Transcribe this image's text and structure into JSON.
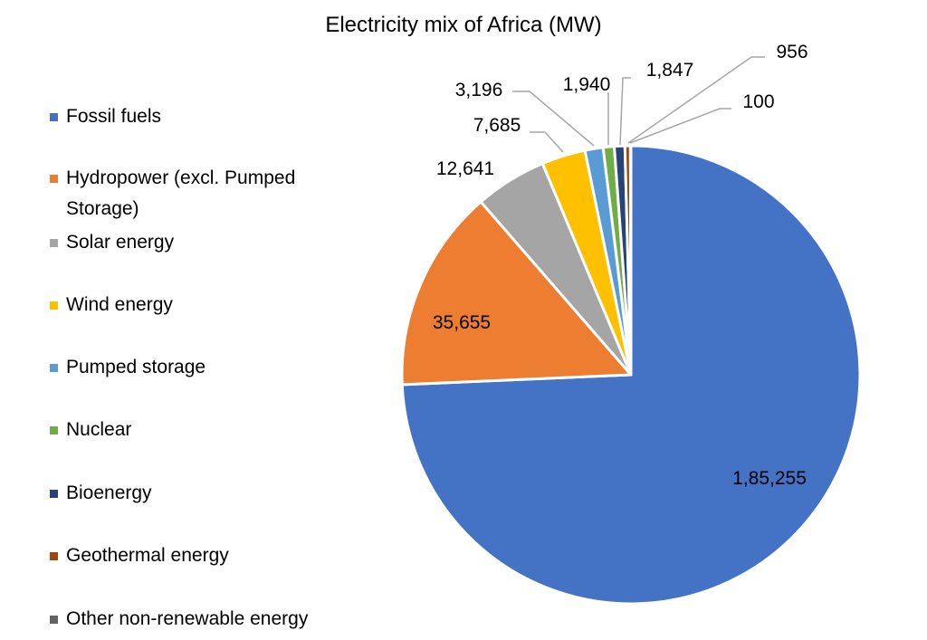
{
  "chart_data": {
    "type": "pie",
    "title": "Electricity mix of Africa (MW)",
    "legend_position": "left",
    "slices": [
      {
        "label": "Fossil fuels",
        "value": 185255,
        "display": "1,85,255",
        "color": "#4472C4"
      },
      {
        "label": "Hydropower (excl. Pumped Storage)",
        "value": 35655,
        "display": "35,655",
        "color": "#ED7D31"
      },
      {
        "label": "Solar energy",
        "value": 12641,
        "display": "12,641",
        "color": "#A5A5A5"
      },
      {
        "label": "Wind energy",
        "value": 7685,
        "display": "7,685",
        "color": "#FFC000"
      },
      {
        "label": "Pumped storage",
        "value": 3196,
        "display": "3,196",
        "color": "#5B9BD5"
      },
      {
        "label": "Nuclear",
        "value": 1940,
        "display": "1,940",
        "color": "#70AD47"
      },
      {
        "label": "Bioenergy",
        "value": 1847,
        "display": "1,847",
        "color": "#264478"
      },
      {
        "label": "Geothermal energy",
        "value": 956,
        "display": "956",
        "color": "#9E480E"
      },
      {
        "label": "Other non-renewable energy",
        "value": 100,
        "display": "100",
        "color": "#636363"
      }
    ]
  }
}
